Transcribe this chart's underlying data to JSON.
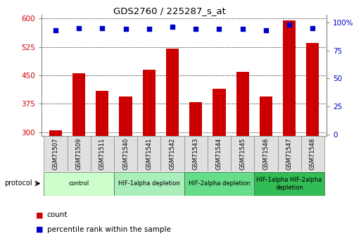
{
  "title": "GDS2760 / 225287_s_at",
  "samples": [
    "GSM71507",
    "GSM71509",
    "GSM71511",
    "GSM71540",
    "GSM71541",
    "GSM71542",
    "GSM71543",
    "GSM71544",
    "GSM71545",
    "GSM71546",
    "GSM71547",
    "GSM71548"
  ],
  "counts": [
    305,
    455,
    410,
    395,
    465,
    520,
    380,
    415,
    460,
    395,
    595,
    535
  ],
  "percentiles": [
    93,
    95,
    95,
    94,
    94,
    96,
    94,
    94,
    94,
    93,
    98,
    95
  ],
  "bar_color": "#cc0000",
  "dot_color": "#0000cc",
  "ylim_left": [
    290,
    610
  ],
  "ylim_right": [
    -1.5,
    107
  ],
  "yticks_left": [
    300,
    375,
    450,
    525,
    600
  ],
  "ytick_labels_left": [
    "300",
    "375",
    "450",
    "525",
    "600"
  ],
  "yticks_right": [
    0,
    25,
    50,
    75,
    100
  ],
  "ytick_labels_right": [
    "0",
    "25",
    "50",
    "75",
    "100%"
  ],
  "groups": [
    {
      "label": "control",
      "start": 0,
      "end": 2,
      "color": "#ccffcc"
    },
    {
      "label": "HIF-1alpha depletion",
      "start": 3,
      "end": 5,
      "color": "#aaeebb"
    },
    {
      "label": "HIF-2alpha depletion",
      "start": 6,
      "end": 8,
      "color": "#66dd88"
    },
    {
      "label": "HIF-1alpha HIF-2alpha\ndepletion",
      "start": 9,
      "end": 11,
      "color": "#33bb55"
    }
  ],
  "legend_count_label": "count",
  "legend_percentile_label": "percentile rank within the sample",
  "protocol_label": "protocol",
  "bar_width": 0.55,
  "plot_bg": "#ffffff",
  "tick_label_color_left": "#cc0000",
  "tick_label_color_right": "#0000cc",
  "bar_bottom": 290
}
